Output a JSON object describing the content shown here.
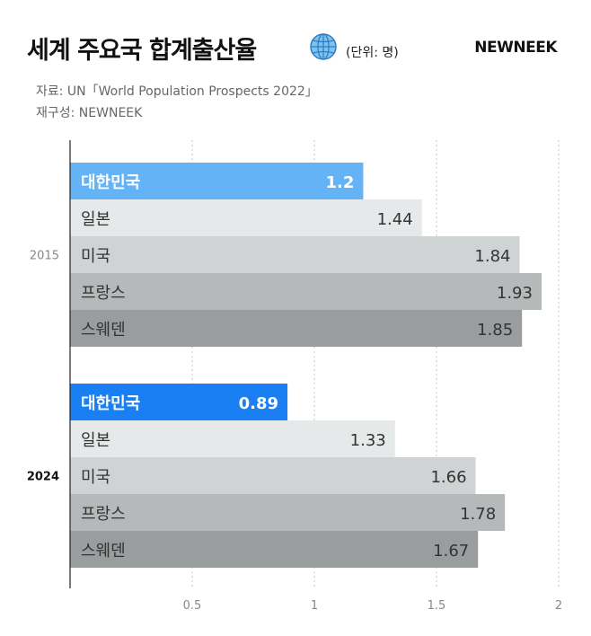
{
  "header": {
    "title": "세계 주요국 합계출산율",
    "unit": "(단위: 명)",
    "brand": "NEWNEEK",
    "globe_icon": "globe-icon"
  },
  "sources": {
    "source": "자료: UN「World Population Prospects 2022」",
    "edited": "재구성: NEWNEEK"
  },
  "chart_data": {
    "type": "bar",
    "orientation": "horizontal",
    "xlim": [
      0,
      2
    ],
    "x_ticks": [
      "0.5",
      "1",
      "1.5",
      "2"
    ],
    "x_tick_values": [
      0.5,
      1,
      1.5,
      2
    ],
    "groups": [
      {
        "label": "2015",
        "bars": [
          {
            "category": "대한민국",
            "value": 1.2,
            "label": "1.2",
            "highlight": true
          },
          {
            "category": "일본",
            "value": 1.44,
            "label": "1.44"
          },
          {
            "category": "미국",
            "value": 1.84,
            "label": "1.84"
          },
          {
            "category": "프랑스",
            "value": 1.93,
            "label": "1.93"
          },
          {
            "category": "스웨덴",
            "value": 1.85,
            "label": "1.85"
          }
        ]
      },
      {
        "label": "2024",
        "bars": [
          {
            "category": "대한민국",
            "value": 0.89,
            "label": "0.89",
            "highlight": true
          },
          {
            "category": "일본",
            "value": 1.33,
            "label": "1.33"
          },
          {
            "category": "미국",
            "value": 1.66,
            "label": "1.66"
          },
          {
            "category": "프랑스",
            "value": 1.78,
            "label": "1.78"
          },
          {
            "category": "스웨덴",
            "value": 1.67,
            "label": "1.67"
          }
        ]
      }
    ],
    "colors": {
      "highlight_2015": "#64b3f6",
      "highlight_2024": "#1a7ff2",
      "ranks": [
        "#e6e9e9",
        "#cfd3d4",
        "#b5b9ba",
        "#999d9e"
      ]
    }
  }
}
